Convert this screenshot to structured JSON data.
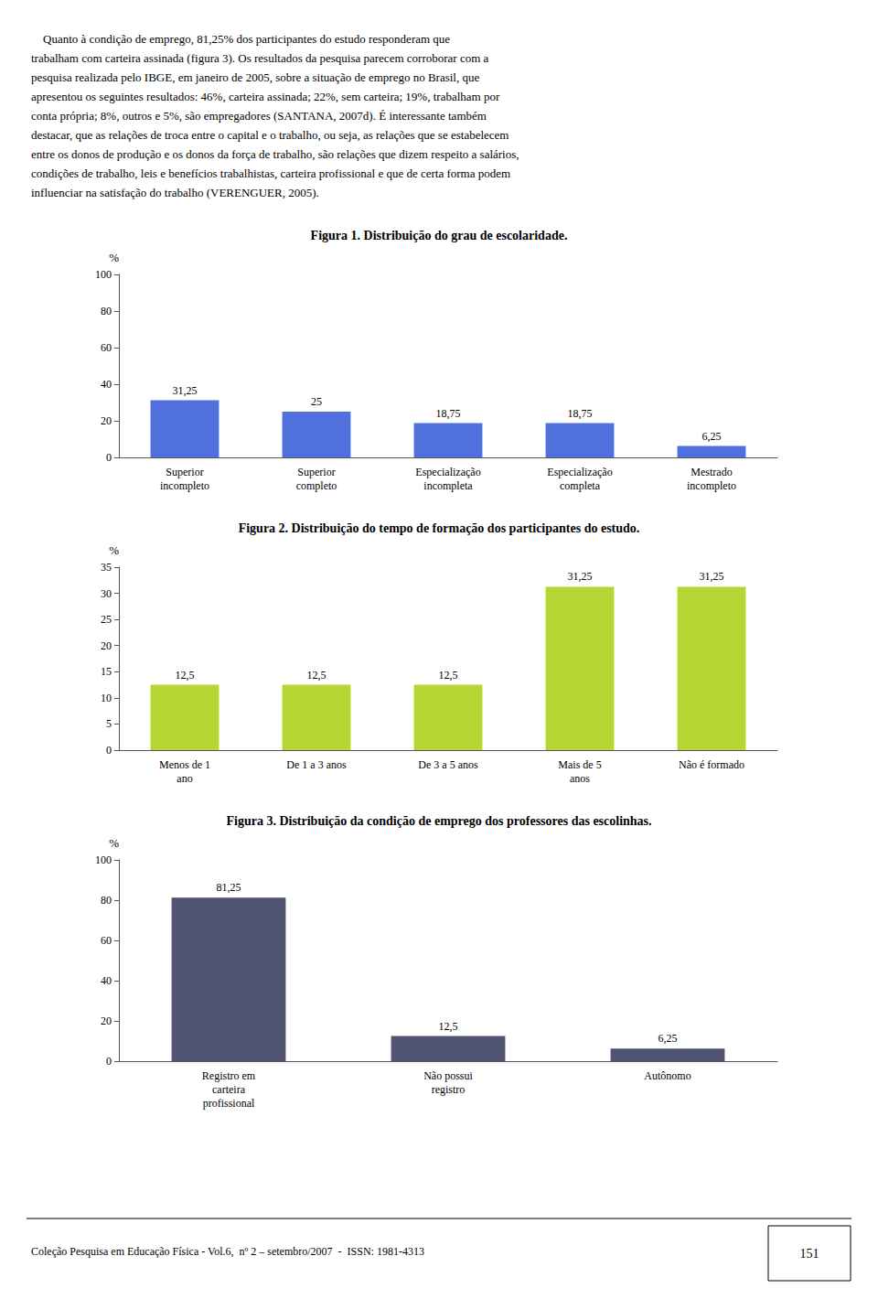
{
  "annotations": {
    "header": [
      "    Quanto à condição de emprego, 81,25% dos participantes do estudo responderam que",
      "trabalham com carteira assinada (figura 3). Os resultados da pesquisa parecem corroborar com a",
      "pesquisa realizada pelo IBGE, em janeiro de 2005, sobre a situação de emprego no Brasil, que",
      "apresentou os seguintes resultados: 46%, carteira assinada; 22%, sem carteira; 19%, trabalham por",
      "conta própria; 8%, outros e 5%, são empregadores (SANTANA, 2007d). É interessante também",
      "destacar, que as relações de troca entre o capital e o trabalho, ou seja, as relações que se estabelecem",
      "entre os donos de produção e os donos da força de trabalho, são relações que dizem respeito a salários,",
      "condições de trabalho, leis e benefícios trabalhistas, carteira profissional e que de certa forma podem",
      "influenciar na satisfação do trabalho (VERENGUER, 2005)."
    ],
    "footer": "Coleção Pesquisa em Educação Física - Vol.6,  nº 2 – setembro/2007  -  ISSN: 1981-4313",
    "page_number": "151"
  },
  "chart_data": [
    {
      "type": "bar",
      "title": "Figura 1. Distribuição do grau de escolaridade.",
      "categories": [
        "Superior\nincompleto",
        "Superior\ncompleto",
        "Especialização\nincompleta",
        "Especialização\ncompleta",
        "Mestrado\nincompleto"
      ],
      "values": [
        31.25,
        25.0,
        18.75,
        18.75,
        6.25
      ],
      "value_labels": [
        "31,25",
        "25",
        "18,75",
        "18,75",
        "6,25"
      ],
      "data_labels": true,
      "ylabel": "%",
      "ylim": [
        0,
        100
      ],
      "yticks": [
        0,
        20,
        40,
        60,
        80,
        100
      ],
      "grid": false
    },
    {
      "type": "bar",
      "title": "Figura 2. Distribuição do tempo de formação dos participantes do estudo.",
      "categories": [
        "Menos de 1\nano",
        "De 1 a 3 anos",
        "De 3 a 5 anos",
        "Mais de 5\nanos",
        "Não é formado"
      ],
      "values": [
        12.5,
        12.5,
        12.5,
        31.25,
        31.25
      ],
      "value_labels": [
        "12,5",
        "12,5",
        "12,5",
        "31,25",
        "31,25"
      ],
      "data_labels": true,
      "ylabel": "%",
      "ylim": [
        0,
        35
      ],
      "yticks": [
        0,
        5,
        10,
        15,
        20,
        25,
        30,
        35
      ],
      "grid": false
    },
    {
      "type": "bar",
      "title": "Figura 3. Distribuição da condição de emprego dos professores das escolinhas.",
      "categories": [
        "Registro em\ncarteira\nprofissional",
        "Não possui\nregistro",
        "Autônomo"
      ],
      "values": [
        81.25,
        12.5,
        6.25
      ],
      "value_labels": [
        "81,25",
        "12,5",
        "6,25"
      ],
      "data_labels": true,
      "ylabel": "%",
      "ylim": [
        0,
        100
      ],
      "yticks": [
        0,
        20,
        40,
        60,
        80,
        100
      ],
      "grid": false
    }
  ]
}
